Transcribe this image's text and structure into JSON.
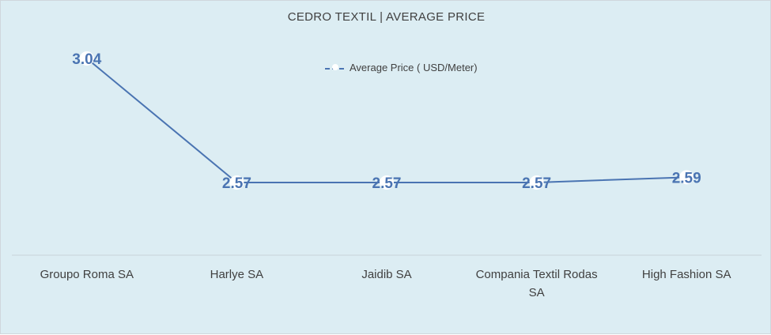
{
  "chart_data": {
    "type": "line",
    "title": "CEDRO TEXTIL | AVERAGE PRICE",
    "categories": [
      "Groupo Roma SA",
      "Harlye SA",
      "Jaidib SA",
      "Compania Textil Rodas SA",
      "High Fashion SA"
    ],
    "category_lines": [
      [
        "Groupo Roma SA"
      ],
      [
        "Harlye SA"
      ],
      [
        "Jaidib SA"
      ],
      [
        "Compania Textil Rodas",
        "SA"
      ],
      [
        "High Fashion SA"
      ]
    ],
    "series": [
      {
        "name": "Average Price ( USD/Meter)",
        "values": [
          3.04,
          2.57,
          2.57,
          2.57,
          2.59
        ],
        "labels": [
          "3.04",
          "2.57",
          "2.57",
          "2.57",
          "2.59"
        ]
      }
    ],
    "legend_position": "top",
    "grid": false,
    "colors": {
      "line": "#4a74b2",
      "marker": "#ffffff",
      "background": "#dcedf3",
      "axis": "#c8d4da"
    }
  }
}
